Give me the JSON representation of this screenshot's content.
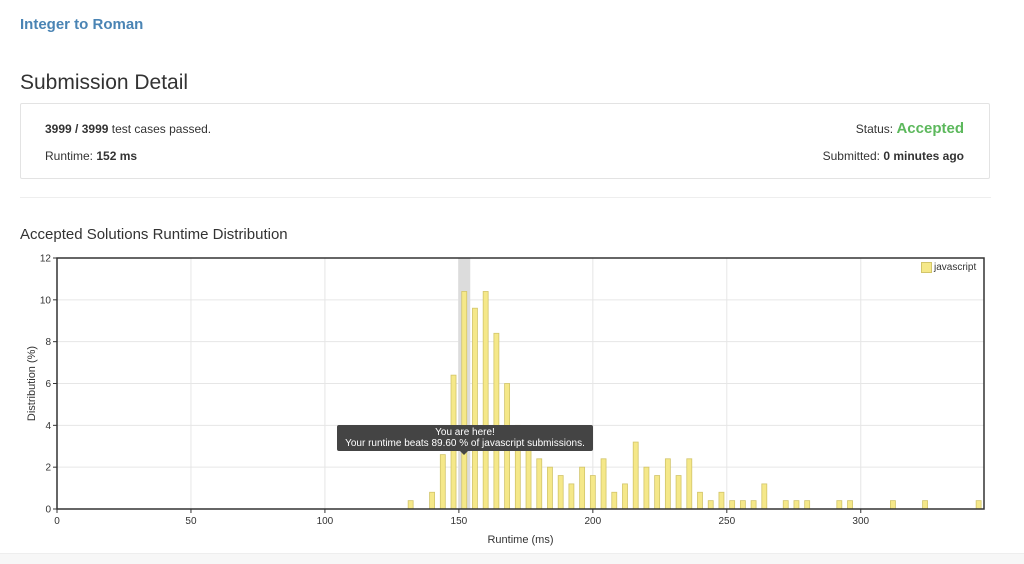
{
  "problem": {
    "title": "Integer to Roman"
  },
  "page": {
    "title": "Submission Detail"
  },
  "detail": {
    "cases_passed": "3999",
    "cases_sep": " / ",
    "cases_total": "3999",
    "cases_suffix": " test cases passed.",
    "runtime_label": "Runtime: ",
    "runtime_value": "152 ms",
    "status_label": "Status: ",
    "status_value": "Accepted",
    "submitted_label": "Submitted: ",
    "submitted_value": "0 minutes ago"
  },
  "colors": {
    "accepted": "#5cb85c",
    "link": "#4a84b4",
    "bar_fill": "#f5e889",
    "bar_stroke": "#d2c56a",
    "highlight": "#dcdcdc"
  },
  "chart_title": "Accepted Solutions Runtime Distribution",
  "tooltip": {
    "line1": "You are here!",
    "line2": "Your runtime beats 89.60 % of javascript submissions."
  },
  "chart_data": {
    "type": "bar",
    "title": "",
    "xlabel": "Runtime (ms)",
    "ylabel": "Distribution (%)",
    "xlim": [
      0,
      346
    ],
    "ylim": [
      0,
      12
    ],
    "xticks": [
      0,
      50,
      100,
      150,
      200,
      250,
      300
    ],
    "yticks": [
      0,
      2,
      4,
      6,
      8,
      10,
      12
    ],
    "grid": true,
    "legend_position": "top-right",
    "highlight_x": 152,
    "series": [
      {
        "name": "javascript",
        "x": [
          132,
          140,
          144,
          148,
          152,
          156,
          160,
          164,
          168,
          172,
          176,
          180,
          184,
          188,
          192,
          196,
          200,
          204,
          208,
          212,
          216,
          220,
          224,
          228,
          232,
          236,
          240,
          244,
          248,
          252,
          256,
          260,
          264,
          272,
          276,
          280,
          292,
          296,
          312,
          324,
          344
        ],
        "values": [
          0.4,
          0.8,
          2.6,
          6.4,
          10.4,
          9.6,
          10.4,
          8.4,
          6.0,
          4.0,
          3.2,
          2.4,
          2.0,
          1.6,
          1.2,
          2.0,
          1.6,
          2.4,
          0.8,
          1.2,
          3.2,
          2.0,
          1.6,
          2.4,
          1.6,
          2.4,
          0.8,
          0.4,
          0.8,
          0.4,
          0.4,
          0.4,
          1.2,
          0.4,
          0.4,
          0.4,
          0.4,
          0.4,
          0.4,
          0.4,
          0.4
        ]
      }
    ]
  }
}
